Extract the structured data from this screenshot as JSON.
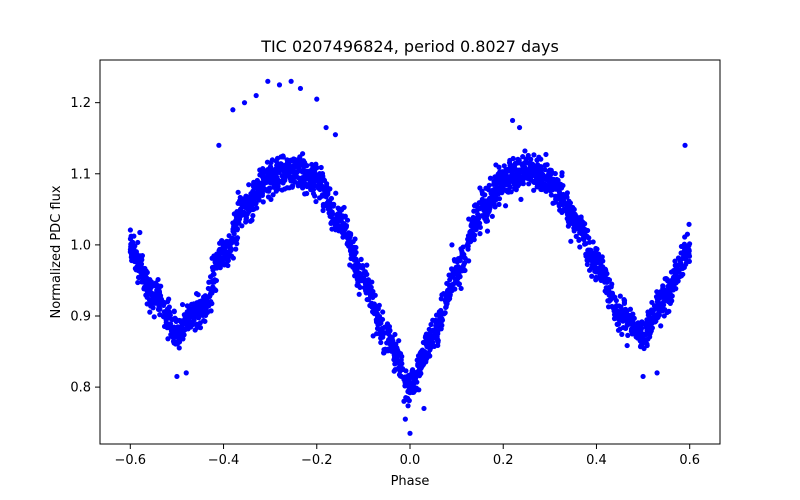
{
  "chart_data": {
    "type": "scatter",
    "title": "TIC 0207496824, period 0.8027 days",
    "xlabel": "Phase",
    "ylabel": "Normalized PDC flux",
    "xlim": [
      -0.665,
      0.665
    ],
    "ylim": [
      0.72,
      1.26
    ],
    "xticks": [
      -0.6,
      -0.4,
      -0.2,
      0.0,
      0.2,
      0.4,
      0.6
    ],
    "xtick_labels": [
      "−0.6",
      "−0.4",
      "−0.2",
      "0.0",
      "0.2",
      "0.4",
      "0.6"
    ],
    "yticks": [
      0.8,
      0.9,
      1.0,
      1.1,
      1.2
    ],
    "ytick_labels": [
      "0.8",
      "0.9",
      "1.0",
      "1.1",
      "1.2"
    ],
    "grid": false,
    "marker_color": "#0000ff",
    "phase_range": [
      -0.6,
      0.6
    ],
    "curve_model": {
      "description": "flux vs phase envelope of the folded light curve",
      "points": [
        [
          -0.6,
          0.995
        ],
        [
          -0.55,
          0.93
        ],
        [
          -0.5,
          0.88
        ],
        [
          -0.45,
          0.905
        ],
        [
          -0.4,
          0.985
        ],
        [
          -0.35,
          1.06
        ],
        [
          -0.3,
          1.095
        ],
        [
          -0.25,
          1.105
        ],
        [
          -0.2,
          1.09
        ],
        [
          -0.15,
          1.03
        ],
        [
          -0.1,
          0.95
        ],
        [
          -0.05,
          0.87
        ],
        [
          0.0,
          0.805
        ],
        [
          0.05,
          0.87
        ],
        [
          0.1,
          0.96
        ],
        [
          0.15,
          1.045
        ],
        [
          0.2,
          1.09
        ],
        [
          0.25,
          1.105
        ],
        [
          0.3,
          1.09
        ],
        [
          0.35,
          1.04
        ],
        [
          0.4,
          0.975
        ],
        [
          0.45,
          0.905
        ],
        [
          0.5,
          0.875
        ],
        [
          0.55,
          0.93
        ],
        [
          0.6,
          1.0
        ]
      ]
    },
    "outliers": [
      [
        -0.41,
        1.14
      ],
      [
        -0.38,
        1.19
      ],
      [
        -0.355,
        1.2
      ],
      [
        -0.33,
        1.21
      ],
      [
        -0.305,
        1.23
      ],
      [
        -0.28,
        1.225
      ],
      [
        -0.255,
        1.23
      ],
      [
        -0.235,
        1.22
      ],
      [
        -0.2,
        1.205
      ],
      [
        -0.18,
        1.165
      ],
      [
        -0.16,
        1.155
      ],
      [
        0.22,
        1.175
      ],
      [
        0.235,
        1.165
      ],
      [
        0.59,
        1.14
      ],
      [
        0.0,
        0.735
      ],
      [
        -0.01,
        0.755
      ],
      [
        0.03,
        0.77
      ],
      [
        -0.5,
        0.815
      ],
      [
        -0.48,
        0.82
      ],
      [
        0.5,
        0.815
      ],
      [
        0.53,
        0.82
      ],
      [
        0.15,
        1.08
      ],
      [
        0.165,
        1.055
      ],
      [
        -0.37,
        1.01
      ],
      [
        0.345,
        1.005
      ],
      [
        0.205,
        1.055
      ],
      [
        0.09,
        1.0
      ],
      [
        -0.105,
        0.97
      ]
    ]
  }
}
